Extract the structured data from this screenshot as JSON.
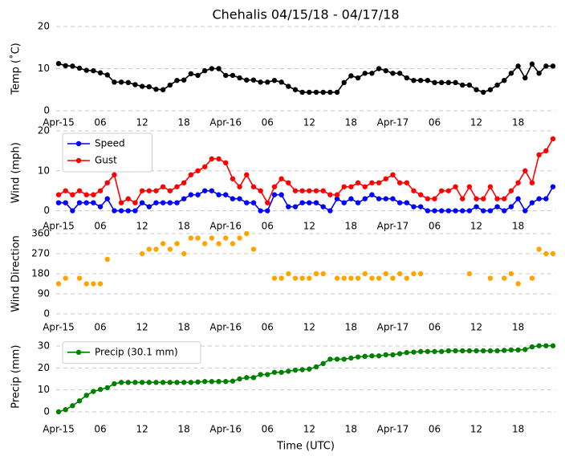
{
  "chart_data": [
    {
      "type": "line",
      "title": "Chehalis 04/15/18 - 04/17/18",
      "ylabel": "Temp (˚C)",
      "x": [
        0,
        1,
        2,
        3,
        4,
        5,
        6,
        7,
        8,
        9,
        10,
        11,
        12,
        13,
        14,
        15,
        16,
        17,
        18,
        19,
        20,
        21,
        22,
        23,
        24,
        25,
        26,
        27,
        28,
        29,
        30,
        31,
        32,
        33,
        34,
        35,
        36,
        37,
        38,
        39,
        40,
        41,
        42,
        43,
        44,
        45,
        46,
        47,
        48,
        49,
        50,
        51,
        52,
        53,
        54,
        55,
        56,
        57,
        58,
        59,
        60,
        61,
        62,
        63,
        64,
        65,
        66,
        67,
        68,
        69,
        70,
        71
      ],
      "xlim": [
        0,
        71
      ],
      "xticks": [
        {
          "value": 0,
          "label": "Apr-15"
        },
        {
          "value": 6,
          "label": "06"
        },
        {
          "value": 12,
          "label": "12"
        },
        {
          "value": 18,
          "label": "18"
        },
        {
          "value": 24,
          "label": "Apr-16"
        },
        {
          "value": 30,
          "label": "06"
        },
        {
          "value": 36,
          "label": "12"
        },
        {
          "value": 42,
          "label": "18"
        },
        {
          "value": 48,
          "label": "Apr-17"
        },
        {
          "value": 54,
          "label": "06"
        },
        {
          "value": 60,
          "label": "12"
        },
        {
          "value": 66,
          "label": "18"
        }
      ],
      "ylim": [
        0,
        20
      ],
      "yticks": [
        0,
        10,
        20
      ],
      "grid": true,
      "series": [
        {
          "color": "#000000",
          "values": [
            11.2,
            10.7,
            10.6,
            10.1,
            9.6,
            9.5,
            9.0,
            8.5,
            6.8,
            6.8,
            6.7,
            6.2,
            5.8,
            5.7,
            5.1,
            5.0,
            6.1,
            7.2,
            7.3,
            8.8,
            8.4,
            9.5,
            10.0,
            10.0,
            8.4,
            8.4,
            7.8,
            7.3,
            7.3,
            6.8,
            6.8,
            7.2,
            6.8,
            5.8,
            5.0,
            4.4,
            4.4,
            4.4,
            4.4,
            4.4,
            4.4,
            6.7,
            8.3,
            7.8,
            8.9,
            8.9,
            10.0,
            9.5,
            8.9,
            8.9,
            7.8,
            7.2,
            7.2,
            7.2,
            6.7,
            6.7,
            6.7,
            6.7,
            6.1,
            6.1,
            5.0,
            4.4,
            5.0,
            6.1,
            7.2,
            8.9,
            10.6,
            7.8,
            11.1,
            8.9,
            10.6,
            10.6
          ]
        }
      ]
    },
    {
      "type": "line",
      "ylabel": "Wind (mph)",
      "legend": "upper left",
      "x": [
        0,
        1,
        2,
        3,
        4,
        5,
        6,
        7,
        8,
        9,
        10,
        11,
        12,
        13,
        14,
        15,
        16,
        17,
        18,
        19,
        20,
        21,
        22,
        23,
        24,
        25,
        26,
        27,
        28,
        29,
        30,
        31,
        32,
        33,
        34,
        35,
        36,
        37,
        38,
        39,
        40,
        41,
        42,
        43,
        44,
        45,
        46,
        47,
        48,
        49,
        50,
        51,
        52,
        53,
        54,
        55,
        56,
        57,
        58,
        59,
        60,
        61,
        62,
        63,
        64,
        65,
        66,
        67,
        68,
        69,
        70,
        71
      ],
      "xlim": [
        0,
        71
      ],
      "xticks": [
        {
          "value": 0,
          "label": "Apr-15"
        },
        {
          "value": 6,
          "label": "06"
        },
        {
          "value": 12,
          "label": "12"
        },
        {
          "value": 18,
          "label": "18"
        },
        {
          "value": 24,
          "label": "Apr-16"
        },
        {
          "value": 30,
          "label": "06"
        },
        {
          "value": 36,
          "label": "12"
        },
        {
          "value": 42,
          "label": "18"
        },
        {
          "value": 48,
          "label": "Apr-17"
        },
        {
          "value": 54,
          "label": "06"
        },
        {
          "value": 60,
          "label": "12"
        },
        {
          "value": 66,
          "label": "18"
        }
      ],
      "ylim": [
        -1,
        20
      ],
      "yticks": [
        0,
        10,
        20
      ],
      "grid": true,
      "series": [
        {
          "name": "Speed",
          "color": "#0000ff",
          "values": [
            2,
            2,
            0,
            2,
            2,
            2,
            1,
            3,
            0,
            0,
            0,
            0,
            2,
            1,
            2,
            2,
            2,
            2,
            3,
            4,
            4,
            5,
            5,
            4,
            4,
            3,
            3,
            2,
            2,
            0,
            0,
            4,
            4,
            1,
            1,
            2,
            2,
            2,
            1,
            0,
            3,
            2,
            3,
            2,
            3,
            4,
            3,
            3,
            3,
            2,
            2,
            1,
            1,
            0,
            0,
            0,
            0,
            0,
            0,
            0,
            1,
            0,
            0,
            1,
            0,
            1,
            3,
            0,
            2,
            3,
            3,
            6
          ]
        },
        {
          "name": "Gust",
          "color": "#ff0000",
          "values": [
            4,
            5,
            4,
            5,
            4,
            4,
            5,
            7,
            9,
            2,
            3,
            2,
            5,
            5,
            5,
            6,
            5,
            6,
            7,
            9,
            10,
            11,
            13,
            13,
            12,
            8,
            6,
            9,
            6,
            5,
            2,
            6,
            8,
            7,
            5,
            5,
            5,
            5,
            5,
            4,
            4,
            6,
            6,
            7,
            6,
            7,
            7,
            8,
            9,
            7,
            7,
            5,
            4,
            3,
            3,
            5,
            5,
            6,
            3,
            6,
            3,
            3,
            6,
            3,
            3,
            5,
            7,
            10,
            7,
            14,
            15,
            18
          ]
        }
      ]
    },
    {
      "type": "scatter",
      "ylabel": "Wind Direction",
      "x": [
        0,
        1,
        2,
        3,
        4,
        5,
        6,
        7,
        8,
        9,
        10,
        11,
        12,
        13,
        14,
        15,
        16,
        17,
        18,
        19,
        20,
        21,
        22,
        23,
        24,
        25,
        26,
        27,
        28,
        29,
        30,
        31,
        32,
        33,
        34,
        35,
        36,
        37,
        38,
        39,
        40,
        41,
        42,
        43,
        44,
        45,
        46,
        47,
        48,
        49,
        50,
        51,
        52,
        53,
        54,
        55,
        56,
        57,
        58,
        59,
        60,
        61,
        62,
        63,
        64,
        65,
        66,
        67,
        68,
        69,
        70,
        71
      ],
      "xlim": [
        0,
        71
      ],
      "xticks": [
        {
          "value": 0,
          "label": "Apr-15"
        },
        {
          "value": 6,
          "label": "06"
        },
        {
          "value": 12,
          "label": "12"
        },
        {
          "value": 18,
          "label": "18"
        },
        {
          "value": 24,
          "label": "Apr-16"
        },
        {
          "value": 30,
          "label": "06"
        },
        {
          "value": 36,
          "label": "12"
        },
        {
          "value": 42,
          "label": "18"
        },
        {
          "value": 48,
          "label": "Apr-17"
        },
        {
          "value": 54,
          "label": "06"
        },
        {
          "value": 60,
          "label": "12"
        },
        {
          "value": 66,
          "label": "18"
        }
      ],
      "ylim": [
        0,
        360
      ],
      "yticks": [
        0,
        90,
        180,
        270,
        360
      ],
      "grid": true,
      "series": [
        {
          "color": "#ffa500",
          "values": [
            135,
            160,
            null,
            160,
            135,
            135,
            135,
            245,
            null,
            null,
            null,
            null,
            270,
            290,
            290,
            315,
            290,
            315,
            270,
            340,
            340,
            315,
            340,
            315,
            340,
            315,
            340,
            360,
            290,
            null,
            null,
            160,
            160,
            180,
            160,
            160,
            160,
            180,
            180,
            null,
            160,
            160,
            160,
            160,
            180,
            160,
            160,
            180,
            160,
            180,
            160,
            180,
            180,
            null,
            null,
            null,
            null,
            null,
            null,
            180,
            null,
            null,
            160,
            null,
            160,
            180,
            135,
            null,
            160,
            290,
            270,
            270
          ]
        }
      ]
    },
    {
      "type": "line",
      "ylabel": "Precip (mm)",
      "xlabel": "Time (UTC)",
      "legend": "upper left",
      "x": [
        0,
        1,
        2,
        3,
        4,
        5,
        6,
        7,
        8,
        9,
        10,
        11,
        12,
        13,
        14,
        15,
        16,
        17,
        18,
        19,
        20,
        21,
        22,
        23,
        24,
        25,
        26,
        27,
        28,
        29,
        30,
        31,
        32,
        33,
        34,
        35,
        36,
        37,
        38,
        39,
        40,
        41,
        42,
        43,
        44,
        45,
        46,
        47,
        48,
        49,
        50,
        51,
        52,
        53,
        54,
        55,
        56,
        57,
        58,
        59,
        60,
        61,
        62,
        63,
        64,
        65,
        66,
        67,
        68,
        69,
        70,
        71
      ],
      "xlim": [
        0,
        71
      ],
      "xticks": [
        {
          "value": 0,
          "label": "Apr-15"
        },
        {
          "value": 6,
          "label": "06"
        },
        {
          "value": 12,
          "label": "12"
        },
        {
          "value": 18,
          "label": "18"
        },
        {
          "value": 24,
          "label": "Apr-16"
        },
        {
          "value": 30,
          "label": "06"
        },
        {
          "value": 36,
          "label": "12"
        },
        {
          "value": 42,
          "label": "18"
        },
        {
          "value": 48,
          "label": "Apr-17"
        },
        {
          "value": 54,
          "label": "06"
        },
        {
          "value": 60,
          "label": "12"
        },
        {
          "value": 66,
          "label": "18"
        }
      ],
      "ylim": [
        -1,
        33
      ],
      "yticks": [
        0,
        10,
        20,
        30
      ],
      "grid": true,
      "series": [
        {
          "name": "Precip (30.1 mm)",
          "color": "#008000",
          "values": [
            0,
            1,
            2.8,
            5,
            7.5,
            9.3,
            10.2,
            11,
            12.8,
            13.4,
            13.4,
            13.4,
            13.4,
            13.4,
            13.4,
            13.4,
            13.4,
            13.4,
            13.4,
            13.4,
            13.6,
            13.8,
            13.8,
            13.8,
            13.8,
            14,
            15,
            15.6,
            15.6,
            17,
            17,
            18,
            18,
            18.5,
            19,
            19.2,
            19.5,
            20.5,
            22,
            24,
            24,
            24,
            24.5,
            25,
            25.3,
            25.5,
            25.5,
            26,
            26,
            26.5,
            27,
            27.2,
            27.5,
            27.5,
            27.5,
            27.5,
            27.8,
            27.8,
            27.8,
            27.8,
            27.8,
            27.8,
            27.8,
            27.8,
            28,
            28.2,
            28.2,
            28.4,
            29.6,
            30.1,
            30.1,
            30.1
          ]
        }
      ]
    }
  ]
}
